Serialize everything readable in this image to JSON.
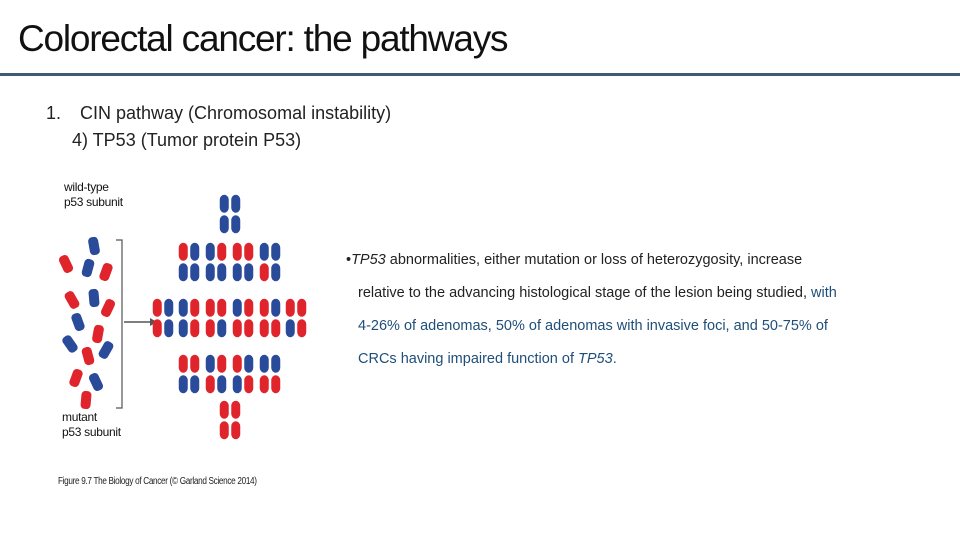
{
  "title": "Colorectal cancer: the pathways",
  "outline": {
    "item1_number": "1.",
    "item1_text": "CIN pathway (Chromosomal instability)",
    "item2_text": "4) TP53 (Tumor protein P53)"
  },
  "figure": {
    "label_wild_line1": "wild-type",
    "label_wild_line2": "p53 subunit",
    "label_mutant_line1": "mutant",
    "label_mutant_line2": "p53 subunit",
    "caption": "Figure 9.7 The Biology of Cancer (© Garland Science 2014)",
    "colors": {
      "wild_type": "#2a4a9a",
      "mutant": "#e0242c"
    }
  },
  "body": {
    "bullet": "•",
    "gene_1": "TP53",
    "line1_rest": " abnormalities, either mutation or loss of heterozygosity, increase",
    "line2_black": "relative to the advancing histological stage of the lesion being studied,",
    "line2_blue": " with",
    "line3": "4-26% of adenomas, 50% of adenomas with invasive foci, and 50-75% of",
    "line4_start": "CRCs having impaired function of ",
    "gene_2": "TP53",
    "line4_end": "."
  }
}
